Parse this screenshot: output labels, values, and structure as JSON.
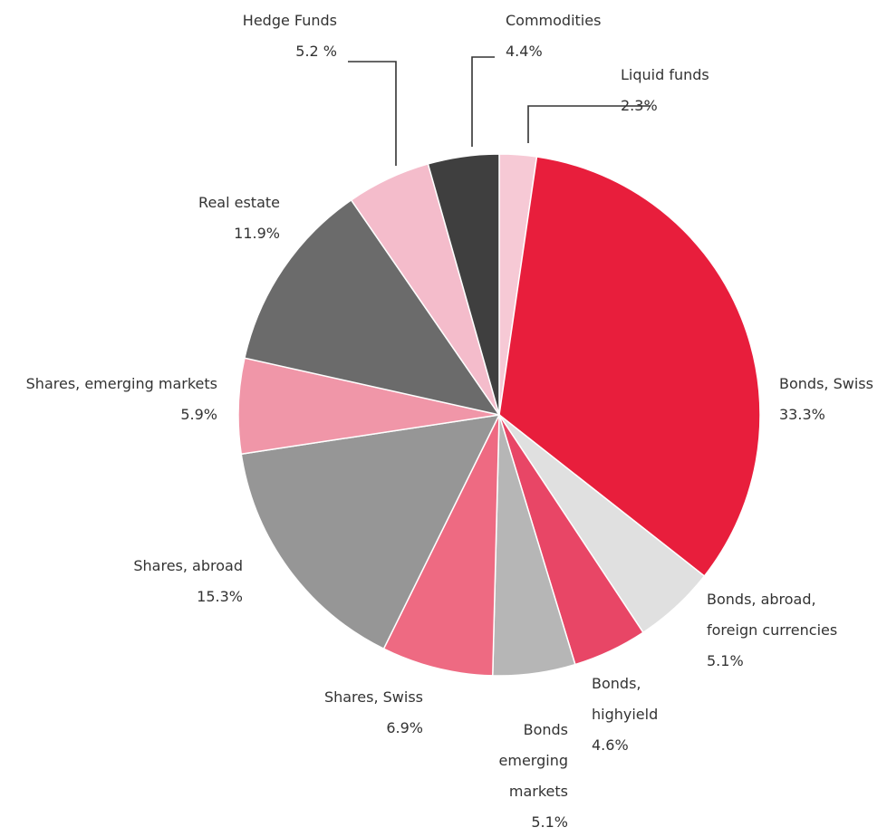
{
  "chart_data": {
    "type": "pie",
    "title": "",
    "slices": [
      {
        "label_lines": [
          "Liquid funds"
        ],
        "value_label": "2.3%",
        "value": 2.3,
        "color": "#f6c9d5"
      },
      {
        "label_lines": [
          "Bonds, Swiss"
        ],
        "value_label": "33.3%",
        "value": 33.3,
        "color": "#e81e3c"
      },
      {
        "label_lines": [
          "Bonds, abroad,",
          "foreign currencies"
        ],
        "value_label": "5.1%",
        "value": 5.1,
        "color": "#e0e0e0"
      },
      {
        "label_lines": [
          "Bonds,",
          "highyield"
        ],
        "value_label": "4.6%",
        "value": 4.6,
        "color": "#e84666"
      },
      {
        "label_lines": [
          "Bonds",
          "emerging",
          "markets"
        ],
        "value_label": "5.1%",
        "value": 5.1,
        "color": "#b6b6b6"
      },
      {
        "label_lines": [
          "Shares, Swiss"
        ],
        "value_label": "6.9%",
        "value": 6.9,
        "color": "#ee6a82"
      },
      {
        "label_lines": [
          "Shares, abroad"
        ],
        "value_label": "15.3%",
        "value": 15.3,
        "color": "#969696"
      },
      {
        "label_lines": [
          "Shares, emerging markets"
        ],
        "value_label": "5.9%",
        "value": 5.9,
        "color": "#f096a8"
      },
      {
        "label_lines": [
          "Real estate"
        ],
        "value_label": "11.9%",
        "value": 11.9,
        "color": "#6b6b6b"
      },
      {
        "label_lines": [
          "Hedge Funds"
        ],
        "value_label": "5.2 %",
        "value": 5.2,
        "color": "#f4bccb"
      },
      {
        "label_lines": [
          "Commodities"
        ],
        "value_label": "4.4%",
        "value": 4.4,
        "color": "#3f3f3f"
      }
    ]
  }
}
